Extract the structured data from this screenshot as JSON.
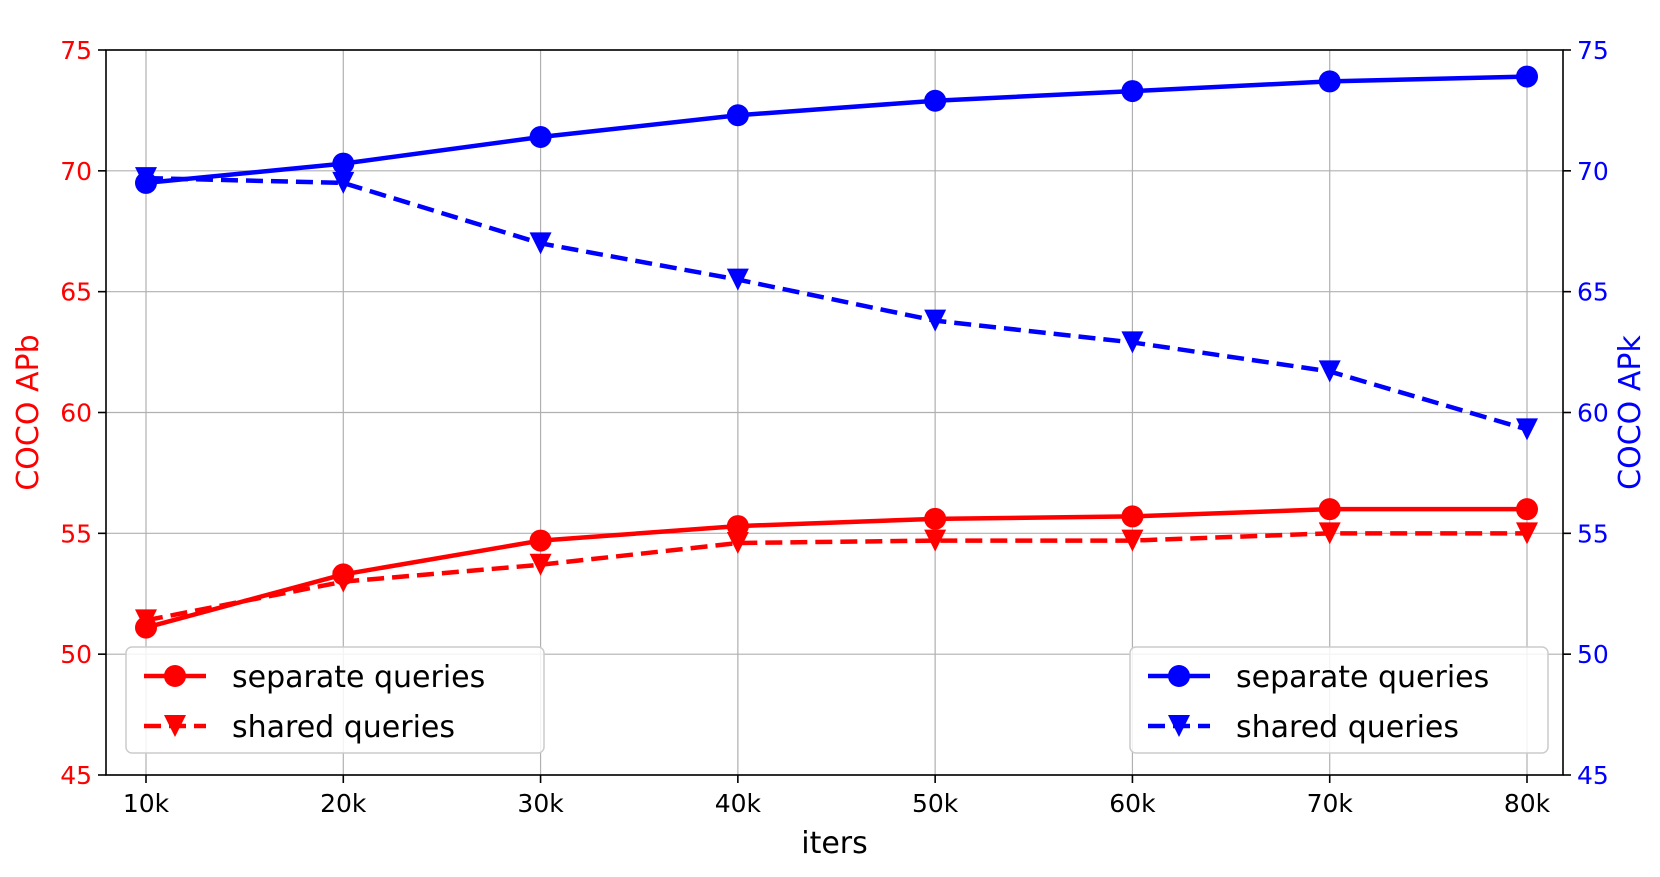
{
  "chart_data": {
    "type": "line",
    "xlabel": "iters",
    "categories": [
      "10k",
      "20k",
      "30k",
      "40k",
      "50k",
      "60k",
      "70k",
      "80k"
    ],
    "left_axis": {
      "label": "COCO APb",
      "color": "#ff0000",
      "ylim": [
        45,
        75
      ],
      "ticks": [
        "45",
        "50",
        "55",
        "60",
        "65",
        "70",
        "75"
      ]
    },
    "right_axis": {
      "label": "COCO APk",
      "color": "#0000ff",
      "ylim": [
        45,
        75
      ],
      "ticks": [
        "45",
        "50",
        "55",
        "60",
        "65",
        "70",
        "75"
      ]
    },
    "grid": true,
    "series": [
      {
        "name": "separate queries",
        "axis": "left",
        "color": "#ff0000",
        "style": "solid",
        "marker": "circle",
        "values": [
          51.1,
          53.3,
          54.7,
          55.3,
          55.6,
          55.7,
          56.0,
          56.0
        ]
      },
      {
        "name": "shared queries",
        "axis": "left",
        "color": "#ff0000",
        "style": "dashed",
        "marker": "triangle-down",
        "values": [
          51.4,
          53.0,
          53.7,
          54.6,
          54.7,
          54.7,
          55.0,
          55.0
        ]
      },
      {
        "name": "separate queries",
        "axis": "right",
        "color": "#0000ff",
        "style": "solid",
        "marker": "circle",
        "values": [
          69.5,
          70.3,
          71.4,
          72.3,
          72.9,
          73.3,
          73.7,
          73.9
        ]
      },
      {
        "name": "shared queries",
        "axis": "right",
        "color": "#0000ff",
        "style": "dashed",
        "marker": "triangle-down",
        "values": [
          69.7,
          69.5,
          67.0,
          65.5,
          63.8,
          62.9,
          61.7,
          59.3
        ]
      }
    ],
    "legends": [
      {
        "placement": "lower-left",
        "entries": [
          "separate queries",
          "shared queries"
        ],
        "color": "#ff0000"
      },
      {
        "placement": "lower-right",
        "entries": [
          "separate queries",
          "shared queries"
        ],
        "color": "#0000ff"
      }
    ]
  }
}
